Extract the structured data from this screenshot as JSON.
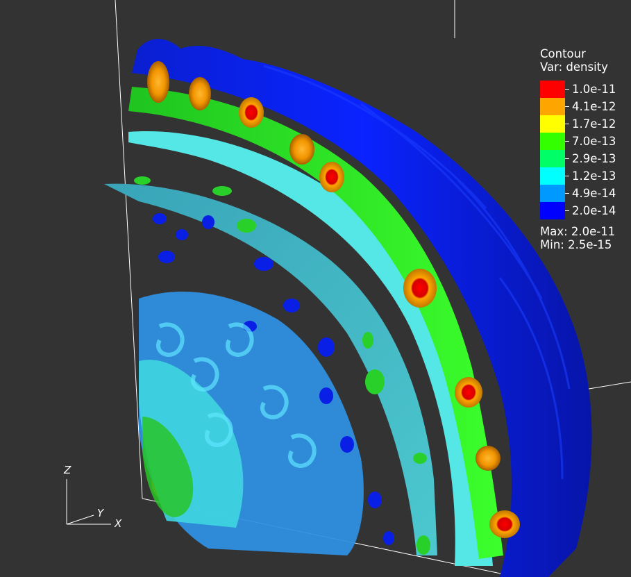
{
  "legend": {
    "title": "Contour",
    "variable": "Var: density",
    "levels": [
      {
        "label": "1.0e-11",
        "color": "#ff0000"
      },
      {
        "label": "4.1e-12",
        "color": "#ffa500"
      },
      {
        "label": "1.7e-12",
        "color": "#ffff00"
      },
      {
        "label": "7.0e-13",
        "color": "#33ff00"
      },
      {
        "label": "2.9e-13",
        "color": "#00ff66"
      },
      {
        "label": "1.2e-13",
        "color": "#00ffff"
      },
      {
        "label": "4.9e-14",
        "color": "#0099ff"
      },
      {
        "label": "2.0e-14",
        "color": "#0000ff"
      }
    ],
    "max": "Max:  2.0e-11",
    "min": "Min:  2.5e-15"
  },
  "axes": {
    "z": "Z",
    "y": "Y",
    "x": "X"
  },
  "colors": {
    "background": "#333333",
    "box_line": "#ffffff"
  }
}
